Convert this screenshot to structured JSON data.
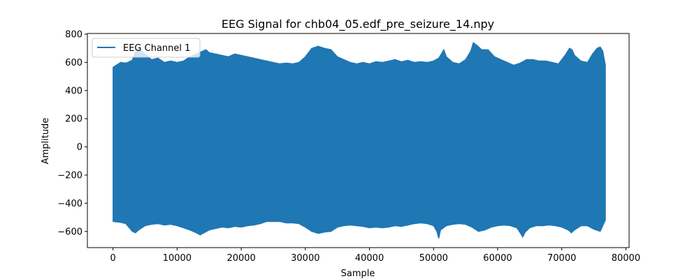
{
  "chart_data": {
    "type": "line",
    "title": "EEG Signal for chb04_05.edf_pre_seizure_14.npy",
    "xlabel": "Sample",
    "ylabel": "Amplitude",
    "xlim": [
      -4000,
      80500
    ],
    "ylim": [
      -715,
      805
    ],
    "x_ticks": [
      {
        "value": 0,
        "label": "0"
      },
      {
        "value": 10000,
        "label": "10000"
      },
      {
        "value": 20000,
        "label": "20000"
      },
      {
        "value": 30000,
        "label": "30000"
      },
      {
        "value": 40000,
        "label": "40000"
      },
      {
        "value": 50000,
        "label": "50000"
      },
      {
        "value": 60000,
        "label": "60000"
      },
      {
        "value": 70000,
        "label": "70000"
      },
      {
        "value": 80000,
        "label": "80000"
      }
    ],
    "y_ticks": [
      {
        "value": 800,
        "label": "800"
      },
      {
        "value": 600,
        "label": "600"
      },
      {
        "value": 400,
        "label": "400"
      },
      {
        "value": 200,
        "label": "200"
      },
      {
        "value": 0,
        "label": "0"
      },
      {
        "value": -200,
        "label": "−200"
      },
      {
        "value": -400,
        "label": "−400"
      },
      {
        "value": -600,
        "label": "−600"
      }
    ],
    "grid": false,
    "legend_position": "top-left",
    "series": [
      {
        "name": "EEG Channel 1",
        "color": "#1f77b4",
        "x_range": [
          0,
          76800
        ],
        "upper_envelope": [
          [
            0,
            565
          ],
          [
            500,
            580
          ],
          [
            1200,
            600
          ],
          [
            2000,
            595
          ],
          [
            3000,
            615
          ],
          [
            3500,
            680
          ],
          [
            4000,
            700
          ],
          [
            5000,
            660
          ],
          [
            6000,
            620
          ],
          [
            7000,
            630
          ],
          [
            8000,
            600
          ],
          [
            9000,
            610
          ],
          [
            10000,
            600
          ],
          [
            11000,
            610
          ],
          [
            12000,
            640
          ],
          [
            13000,
            660
          ],
          [
            14000,
            680
          ],
          [
            14500,
            690
          ],
          [
            15000,
            670
          ],
          [
            16000,
            660
          ],
          [
            17000,
            650
          ],
          [
            18000,
            640
          ],
          [
            19000,
            660
          ],
          [
            20000,
            650
          ],
          [
            21000,
            640
          ],
          [
            22000,
            630
          ],
          [
            23000,
            620
          ],
          [
            24000,
            610
          ],
          [
            25000,
            600
          ],
          [
            26000,
            590
          ],
          [
            27000,
            595
          ],
          [
            28000,
            590
          ],
          [
            29000,
            600
          ],
          [
            30000,
            640
          ],
          [
            31000,
            700
          ],
          [
            32000,
            715
          ],
          [
            33000,
            700
          ],
          [
            34000,
            690
          ],
          [
            35000,
            640
          ],
          [
            36000,
            620
          ],
          [
            37000,
            600
          ],
          [
            38000,
            590
          ],
          [
            39000,
            600
          ],
          [
            40000,
            590
          ],
          [
            41000,
            605
          ],
          [
            42000,
            600
          ],
          [
            43000,
            610
          ],
          [
            44000,
            620
          ],
          [
            45000,
            605
          ],
          [
            46000,
            615
          ],
          [
            47000,
            600
          ],
          [
            48000,
            605
          ],
          [
            49000,
            600
          ],
          [
            50000,
            610
          ],
          [
            50800,
            630
          ],
          [
            51200,
            660
          ],
          [
            51600,
            690
          ],
          [
            52000,
            640
          ],
          [
            53000,
            600
          ],
          [
            54000,
            590
          ],
          [
            55000,
            620
          ],
          [
            55800,
            680
          ],
          [
            56200,
            740
          ],
          [
            56800,
            720
          ],
          [
            57500,
            690
          ],
          [
            58500,
            690
          ],
          [
            59500,
            640
          ],
          [
            60500,
            620
          ],
          [
            61500,
            600
          ],
          [
            62500,
            580
          ],
          [
            63500,
            595
          ],
          [
            64500,
            620
          ],
          [
            65500,
            620
          ],
          [
            66500,
            610
          ],
          [
            67500,
            610
          ],
          [
            68500,
            600
          ],
          [
            69500,
            590
          ],
          [
            70500,
            650
          ],
          [
            71200,
            700
          ],
          [
            71600,
            690
          ],
          [
            72000,
            650
          ],
          [
            73000,
            610
          ],
          [
            74000,
            600
          ],
          [
            74800,
            660
          ],
          [
            75500,
            700
          ],
          [
            76000,
            710
          ],
          [
            76400,
            680
          ],
          [
            76800,
            580
          ]
        ],
        "lower_envelope": [
          [
            0,
            -530
          ],
          [
            1000,
            -535
          ],
          [
            2000,
            -545
          ],
          [
            3000,
            -600
          ],
          [
            3500,
            -610
          ],
          [
            4000,
            -590
          ],
          [
            5000,
            -560
          ],
          [
            6000,
            -550
          ],
          [
            7000,
            -545
          ],
          [
            8000,
            -555
          ],
          [
            9000,
            -550
          ],
          [
            10000,
            -560
          ],
          [
            11000,
            -575
          ],
          [
            12000,
            -590
          ],
          [
            13000,
            -610
          ],
          [
            13600,
            -625
          ],
          [
            14200,
            -610
          ],
          [
            15000,
            -590
          ],
          [
            16000,
            -580
          ],
          [
            17000,
            -570
          ],
          [
            18000,
            -575
          ],
          [
            19000,
            -565
          ],
          [
            20000,
            -570
          ],
          [
            21000,
            -560
          ],
          [
            22000,
            -555
          ],
          [
            23000,
            -545
          ],
          [
            24000,
            -530
          ],
          [
            25000,
            -530
          ],
          [
            26000,
            -530
          ],
          [
            27000,
            -540
          ],
          [
            28000,
            -540
          ],
          [
            29000,
            -545
          ],
          [
            30000,
            -570
          ],
          [
            31000,
            -600
          ],
          [
            32000,
            -615
          ],
          [
            33000,
            -605
          ],
          [
            34000,
            -600
          ],
          [
            35000,
            -570
          ],
          [
            36000,
            -560
          ],
          [
            37000,
            -555
          ],
          [
            38000,
            -560
          ],
          [
            39000,
            -565
          ],
          [
            40000,
            -575
          ],
          [
            41000,
            -570
          ],
          [
            42000,
            -575
          ],
          [
            43000,
            -570
          ],
          [
            44000,
            -560
          ],
          [
            45000,
            -565
          ],
          [
            46000,
            -555
          ],
          [
            47000,
            -545
          ],
          [
            48000,
            -540
          ],
          [
            49000,
            -545
          ],
          [
            50000,
            -560
          ],
          [
            50500,
            -600
          ],
          [
            50800,
            -650
          ],
          [
            51100,
            -590
          ],
          [
            52000,
            -560
          ],
          [
            53000,
            -550
          ],
          [
            54000,
            -545
          ],
          [
            55000,
            -550
          ],
          [
            56000,
            -570
          ],
          [
            57000,
            -600
          ],
          [
            58000,
            -590
          ],
          [
            59000,
            -570
          ],
          [
            60000,
            -560
          ],
          [
            61000,
            -555
          ],
          [
            62000,
            -560
          ],
          [
            63000,
            -575
          ],
          [
            63500,
            -610
          ],
          [
            63900,
            -640
          ],
          [
            64300,
            -605
          ],
          [
            65000,
            -575
          ],
          [
            66000,
            -560
          ],
          [
            67000,
            -560
          ],
          [
            68000,
            -555
          ],
          [
            69000,
            -560
          ],
          [
            70000,
            -570
          ],
          [
            71000,
            -590
          ],
          [
            71500,
            -610
          ],
          [
            72000,
            -590
          ],
          [
            73000,
            -560
          ],
          [
            74000,
            -560
          ],
          [
            75000,
            -585
          ],
          [
            76000,
            -600
          ],
          [
            76800,
            -520
          ]
        ]
      }
    ]
  }
}
